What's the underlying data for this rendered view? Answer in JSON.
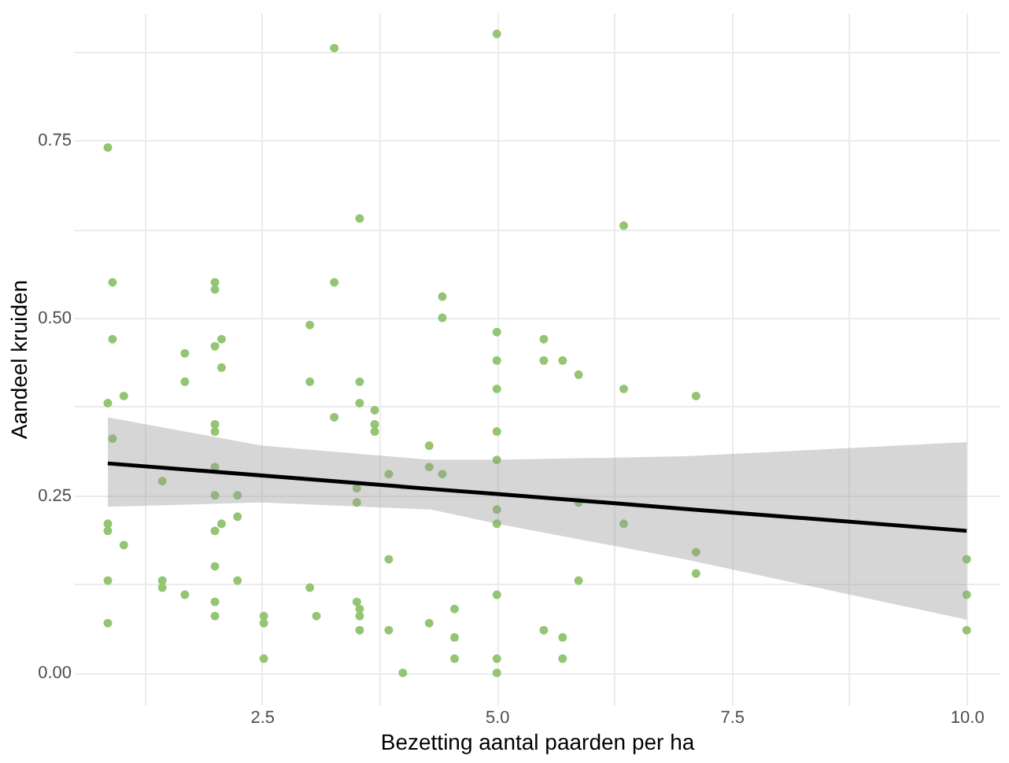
{
  "chart_data": {
    "type": "scatter",
    "xlabel": "Bezetting aantal paarden per ha",
    "ylabel": "Aandeel kruiden",
    "xlim": [
      0.5,
      10.35
    ],
    "ylim": [
      -0.045,
      0.93
    ],
    "xticks": [
      {
        "value": 1.25,
        "label": null
      },
      {
        "value": 2.5,
        "label": "2.5"
      },
      {
        "value": 3.75,
        "label": null
      },
      {
        "value": 5,
        "label": "5.0"
      },
      {
        "value": 6.25,
        "label": null
      },
      {
        "value": 7.5,
        "label": "7.5"
      },
      {
        "value": 8.75,
        "label": null
      },
      {
        "value": 10,
        "label": "10.0"
      }
    ],
    "yticks": [
      {
        "value": 0,
        "label": "0.00"
      },
      {
        "value": 0.125,
        "label": null
      },
      {
        "value": 0.25,
        "label": "0.25"
      },
      {
        "value": 0.375,
        "label": null
      },
      {
        "value": 0.5,
        "label": "0.50"
      },
      {
        "value": 0.625,
        "label": null
      },
      {
        "value": 0.75,
        "label": "0.75"
      },
      {
        "value": 0.875,
        "label": null
      }
    ],
    "grid": true,
    "marker": "circle",
    "series": [
      {
        "color": "#93c572",
        "x": [
          0.86,
          0.86,
          0.86,
          0.86,
          0.86,
          0.86,
          0.91,
          0.91,
          0.91,
          1.03,
          1.03,
          1.44,
          1.44,
          1.44,
          1.68,
          1.68,
          1.68,
          2,
          2,
          2,
          2,
          2,
          2,
          2,
          2,
          2,
          2,
          2,
          2.07,
          2.07,
          2.07,
          2.24,
          2.24,
          2.24,
          2.52,
          2.52,
          2.52,
          3.01,
          3.01,
          3.01,
          3.08,
          3.27,
          3.27,
          3.27,
          3.51,
          3.51,
          3.51,
          3.54,
          3.54,
          3.54,
          3.54,
          3.54,
          3.54,
          3.7,
          3.7,
          3.7,
          3.85,
          3.85,
          3.85,
          4,
          4.28,
          4.28,
          4.28,
          4.42,
          4.42,
          4.42,
          4.55,
          4.55,
          4.55,
          5,
          5,
          5,
          5,
          5,
          5,
          5,
          5,
          5,
          5,
          5,
          5.5,
          5.5,
          5.5,
          5.7,
          5.7,
          5.7,
          5.87,
          5.87,
          5.87,
          6.35,
          6.35,
          6.35,
          7.12,
          7.12,
          7.12,
          10,
          10,
          10
        ],
        "values": [
          0.74,
          0.38,
          0.21,
          0.2,
          0.13,
          0.07,
          0.55,
          0.47,
          0.33,
          0.39,
          0.18,
          0.27,
          0.13,
          0.12,
          0.45,
          0.41,
          0.11,
          0.55,
          0.54,
          0.46,
          0.35,
          0.34,
          0.29,
          0.25,
          0.2,
          0.15,
          0.1,
          0.08,
          0.47,
          0.43,
          0.21,
          0.25,
          0.22,
          0.13,
          0.08,
          0.07,
          0.02,
          0.49,
          0.41,
          0.12,
          0.08,
          0.88,
          0.55,
          0.36,
          0.26,
          0.24,
          0.1,
          0.64,
          0.41,
          0.38,
          0.09,
          0.08,
          0.06,
          0.37,
          0.35,
          0.34,
          0.28,
          0.16,
          0.06,
          0,
          0.32,
          0.29,
          0.07,
          0.53,
          0.5,
          0.28,
          0.09,
          0.05,
          0.02,
          0.9,
          0.48,
          0.44,
          0.4,
          0.34,
          0.3,
          0.23,
          0.21,
          0.11,
          0.02,
          0,
          0.47,
          0.44,
          0.06,
          0.44,
          0.05,
          0.02,
          0.42,
          0.24,
          0.13,
          0.63,
          0.4,
          0.21,
          0.39,
          0.17,
          0.14,
          0.16,
          0.11,
          0.06
        ]
      },
      {
        "type": "line",
        "color": "#000000",
        "line_style": "solid",
        "marker": "none",
        "x": [
          0.86,
          2.5,
          4.3,
          5,
          7,
          10
        ],
        "values": [
          0.295,
          0.278,
          0.259,
          0.252,
          0.231,
          0.2
        ],
        "lower": [
          0.234,
          0.24,
          0.23,
          0.21,
          0.16,
          0.075
        ],
        "upper": [
          0.36,
          0.32,
          0.3,
          0.3,
          0.305,
          0.325
        ]
      }
    ]
  }
}
